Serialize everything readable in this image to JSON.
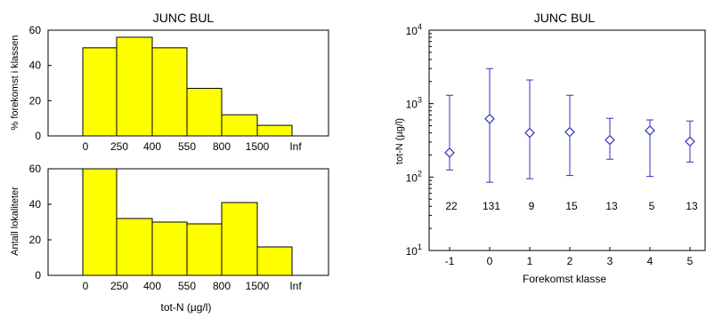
{
  "chart_data": [
    {
      "type": "bar",
      "title": "JUNC BUL",
      "xlabel": "",
      "ylabel": "% forekomst i klassen",
      "categories": [
        "0-250",
        "250-400",
        "400-550",
        "550-800",
        "800-1500",
        "1500-Inf"
      ],
      "tick_labels": [
        "0",
        "250",
        "400",
        "550",
        "800",
        "1500",
        "Inf"
      ],
      "values": [
        50,
        56,
        50,
        27,
        12,
        6
      ],
      "ylim": [
        0,
        60
      ],
      "yticks": [
        "0",
        "20",
        "40",
        "60"
      ],
      "grid": false,
      "bar_color": "#ffff00"
    },
    {
      "type": "bar",
      "title": "",
      "xlabel": "tot-N (µg/l)",
      "ylabel": "Antall lokaliteter",
      "categories": [
        "0-250",
        "250-400",
        "400-550",
        "550-800",
        "800-1500",
        "1500-Inf"
      ],
      "tick_labels": [
        "0",
        "250",
        "400",
        "550",
        "800",
        "1500",
        "Inf"
      ],
      "values": [
        60,
        32,
        30,
        29,
        41,
        16
      ],
      "ylim": [
        0,
        60
      ],
      "yticks": [
        "0",
        "20",
        "40",
        "60"
      ],
      "grid": false,
      "bar_color": "#ffff00"
    },
    {
      "type": "scatter",
      "title": "JUNC BUL",
      "xlabel": "Forekomst klasse",
      "ylabel": "tot-N (µg/l)",
      "yscale": "log",
      "ylim": [
        10,
        10000
      ],
      "xlim": [
        -1.5,
        5.5
      ],
      "xticks": [
        "-1",
        "0",
        "1",
        "2",
        "3",
        "4",
        "5"
      ],
      "yticks": [
        {
          "base": "10",
          "exp": "1"
        },
        {
          "base": "10",
          "exp": "2"
        },
        {
          "base": "10",
          "exp": "3"
        },
        {
          "base": "10",
          "exp": "4"
        }
      ],
      "marker": "diamond",
      "marker_color": "#3333bb",
      "points": [
        {
          "x": -1,
          "y": 215,
          "low": 125,
          "high": 1300,
          "n": "22"
        },
        {
          "x": 0,
          "y": 620,
          "low": 85,
          "high": 3000,
          "n": "131"
        },
        {
          "x": 1,
          "y": 400,
          "low": 95,
          "high": 2100,
          "n": "9"
        },
        {
          "x": 2,
          "y": 410,
          "low": 105,
          "high": 1300,
          "n": "15"
        },
        {
          "x": 3,
          "y": 320,
          "low": 175,
          "high": 630,
          "n": "13"
        },
        {
          "x": 4,
          "y": 430,
          "low": 102,
          "high": 600,
          "n": "5"
        },
        {
          "x": 5,
          "y": 305,
          "low": 160,
          "high": 580,
          "n": "13"
        }
      ],
      "count_label_y": 40,
      "grid": false
    }
  ]
}
